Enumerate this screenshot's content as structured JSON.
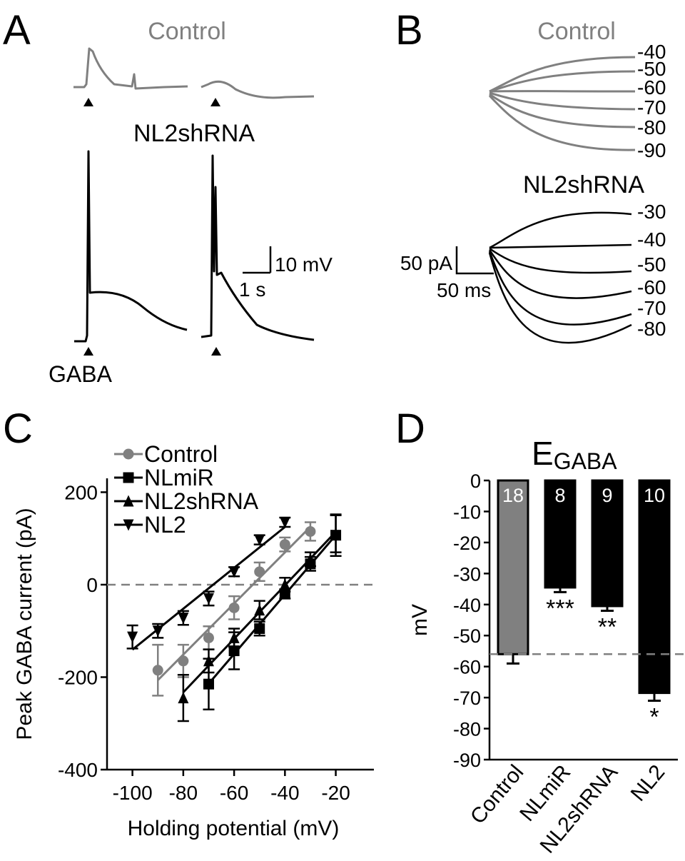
{
  "panel_a": {
    "letter": "A",
    "control_label": "Control",
    "shrna_label": "NL2shRNA",
    "scale_v": "10 mV",
    "scale_t": "1 s",
    "stimulus_label": "GABA"
  },
  "panel_b": {
    "letter": "B",
    "control_label": "Control",
    "shrna_label": "NL2shRNA",
    "scale_i": "50 pA",
    "scale_t": "50 ms",
    "control_levels": [
      "-40",
      "-50",
      "-60",
      "-70",
      "-80",
      "-90"
    ],
    "shrna_levels": [
      "-30",
      "-40",
      "-50",
      "-60",
      "-70",
      "-80"
    ]
  },
  "chart_data": [
    {
      "type": "scatter",
      "letter": "C",
      "xlabel": "Holding potential (mV)",
      "ylabel": "Peak GABA current (pA)",
      "xlim": [
        -110,
        -5
      ],
      "ylim": [
        -400,
        230
      ],
      "xticks": [
        -100,
        -80,
        -60,
        -40,
        -20
      ],
      "yticks": [
        -400,
        -200,
        0,
        200
      ],
      "hline": 0,
      "legend": "upper-left",
      "fit": "linear",
      "series": [
        {
          "name": "Control",
          "color": "#808080",
          "marker": "circle",
          "x": [
            -90,
            -80,
            -70,
            -60,
            -50,
            -40,
            -30
          ],
          "values": [
            -185,
            -165,
            -115,
            -50,
            28,
            87,
            115
          ],
          "errors": [
            55,
            35,
            25,
            25,
            20,
            15,
            20
          ]
        },
        {
          "name": "NLmiR",
          "color": "#000000",
          "marker": "square",
          "x": [
            -70,
            -60,
            -50,
            -40,
            -30,
            -20
          ],
          "values": [
            -215,
            -143,
            -95,
            -20,
            45,
            107
          ],
          "errors": [
            55,
            40,
            15,
            10,
            15,
            45
          ]
        },
        {
          "name": "NL2shRNA",
          "color": "#000000",
          "marker": "triangle-up",
          "x": [
            -80,
            -70,
            -60,
            -50,
            -40,
            -30,
            -20
          ],
          "values": [
            -245,
            -165,
            -115,
            -55,
            0,
            55,
            110
          ],
          "errors": [
            50,
            25,
            20,
            20,
            15,
            15,
            40
          ]
        },
        {
          "name": "NL2",
          "color": "#000000",
          "marker": "triangle-down",
          "x": [
            -100,
            -90,
            -80,
            -70,
            -60,
            -50,
            -40
          ],
          "values": [
            -113,
            -100,
            -72,
            -30,
            28,
            97,
            135
          ],
          "errors": [
            25,
            15,
            15,
            15,
            10,
            10,
            10
          ]
        }
      ]
    },
    {
      "type": "bar",
      "letter": "D",
      "title": "E",
      "title_subscript": "GABA",
      "ylabel": "mV",
      "categories": [
        "Control",
        "NLmiR",
        "NL2shRNA",
        "NL2"
      ],
      "values": [
        -56,
        -34.5,
        -40.5,
        -68.5
      ],
      "errors": [
        3,
        1.5,
        1.5,
        2.5
      ],
      "colors": [
        "#808080",
        "#000000",
        "#000000",
        "#000000"
      ],
      "n": [
        18,
        8,
        9,
        10
      ],
      "significance": [
        null,
        "***",
        "**",
        "*"
      ],
      "ylim": [
        -90,
        0
      ],
      "yticks": [
        0,
        -10,
        -20,
        -30,
        -40,
        -50,
        -60,
        -70,
        -80,
        -90
      ],
      "hline": -56
    }
  ]
}
